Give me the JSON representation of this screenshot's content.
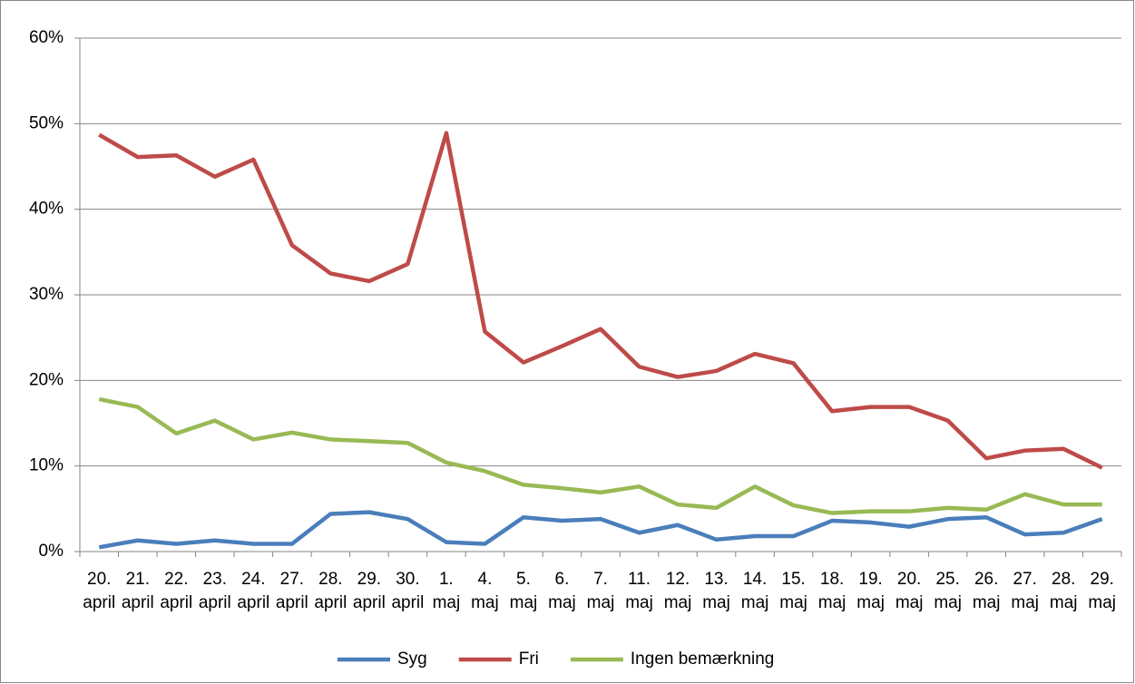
{
  "chart_data": {
    "type": "line",
    "categories": [
      "20. april",
      "21. april",
      "22. april",
      "23. april",
      "24. april",
      "27. april",
      "28. april",
      "29. april",
      "30. april",
      "1. maj",
      "4. maj",
      "5. maj",
      "6. maj",
      "7. maj",
      "11. maj",
      "12. maj",
      "13. maj",
      "14. maj",
      "15. maj",
      "18. maj",
      "19. maj",
      "20. maj",
      "25. maj",
      "26. maj",
      "27. maj",
      "28. maj",
      "29. maj"
    ],
    "series": [
      {
        "name": "Syg",
        "color": "#4a7ebb",
        "values": [
          0.5,
          1.3,
          0.9,
          1.3,
          0.9,
          0.9,
          4.4,
          4.6,
          3.8,
          1.1,
          0.9,
          4.0,
          3.6,
          3.8,
          2.2,
          3.1,
          1.4,
          1.8,
          1.8,
          3.6,
          3.4,
          2.9,
          3.8,
          4.0,
          2.0,
          2.2,
          3.8
        ]
      },
      {
        "name": "Fri",
        "color": "#be4b48",
        "values": [
          48.7,
          46.1,
          46.3,
          43.8,
          45.8,
          35.8,
          32.5,
          31.6,
          33.6,
          48.9,
          25.7,
          22.1,
          24.0,
          26.0,
          21.6,
          20.4,
          21.1,
          23.1,
          22.0,
          16.4,
          16.9,
          16.9,
          15.3,
          10.9,
          11.8,
          12.0,
          9.8
        ]
      },
      {
        "name": "Ingen bemærkning",
        "color": "#98b954",
        "values": [
          17.8,
          16.9,
          13.8,
          15.3,
          13.1,
          13.9,
          13.1,
          12.9,
          12.7,
          10.4,
          9.4,
          7.8,
          7.4,
          6.9,
          7.6,
          5.5,
          5.1,
          7.6,
          5.4,
          4.5,
          4.7,
          4.7,
          5.1,
          4.9,
          6.7,
          5.5,
          5.5
        ]
      }
    ],
    "ylim": [
      0,
      60
    ],
    "yticks": [
      {
        "value": 0,
        "label": "0%"
      },
      {
        "value": 10,
        "label": "10%"
      },
      {
        "value": 20,
        "label": "20%"
      },
      {
        "value": 30,
        "label": "30%"
      },
      {
        "value": 40,
        "label": "40%"
      },
      {
        "value": 50,
        "label": "50%"
      },
      {
        "value": 60,
        "label": "60%"
      }
    ],
    "grid": true,
    "legend": "bottom"
  }
}
